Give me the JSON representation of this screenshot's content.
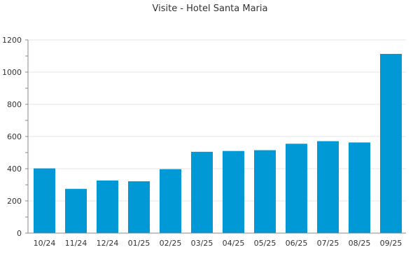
{
  "chart_data": {
    "type": "bar",
    "title": "Visite - Hotel Santa Maria",
    "xlabel": "",
    "ylabel": "",
    "categories": [
      "10/24",
      "11/24",
      "12/24",
      "01/25",
      "02/25",
      "03/25",
      "04/25",
      "05/25",
      "06/25",
      "07/25",
      "08/25",
      "09/25"
    ],
    "values": [
      402,
      275,
      327,
      322,
      397,
      505,
      510,
      515,
      555,
      571,
      563,
      1113
    ],
    "ylim": [
      0,
      1200
    ],
    "yticks": [
      0,
      200,
      400,
      600,
      800,
      1000,
      1200
    ],
    "grid": true,
    "legend": "none",
    "bar_color": "#0099d6"
  }
}
